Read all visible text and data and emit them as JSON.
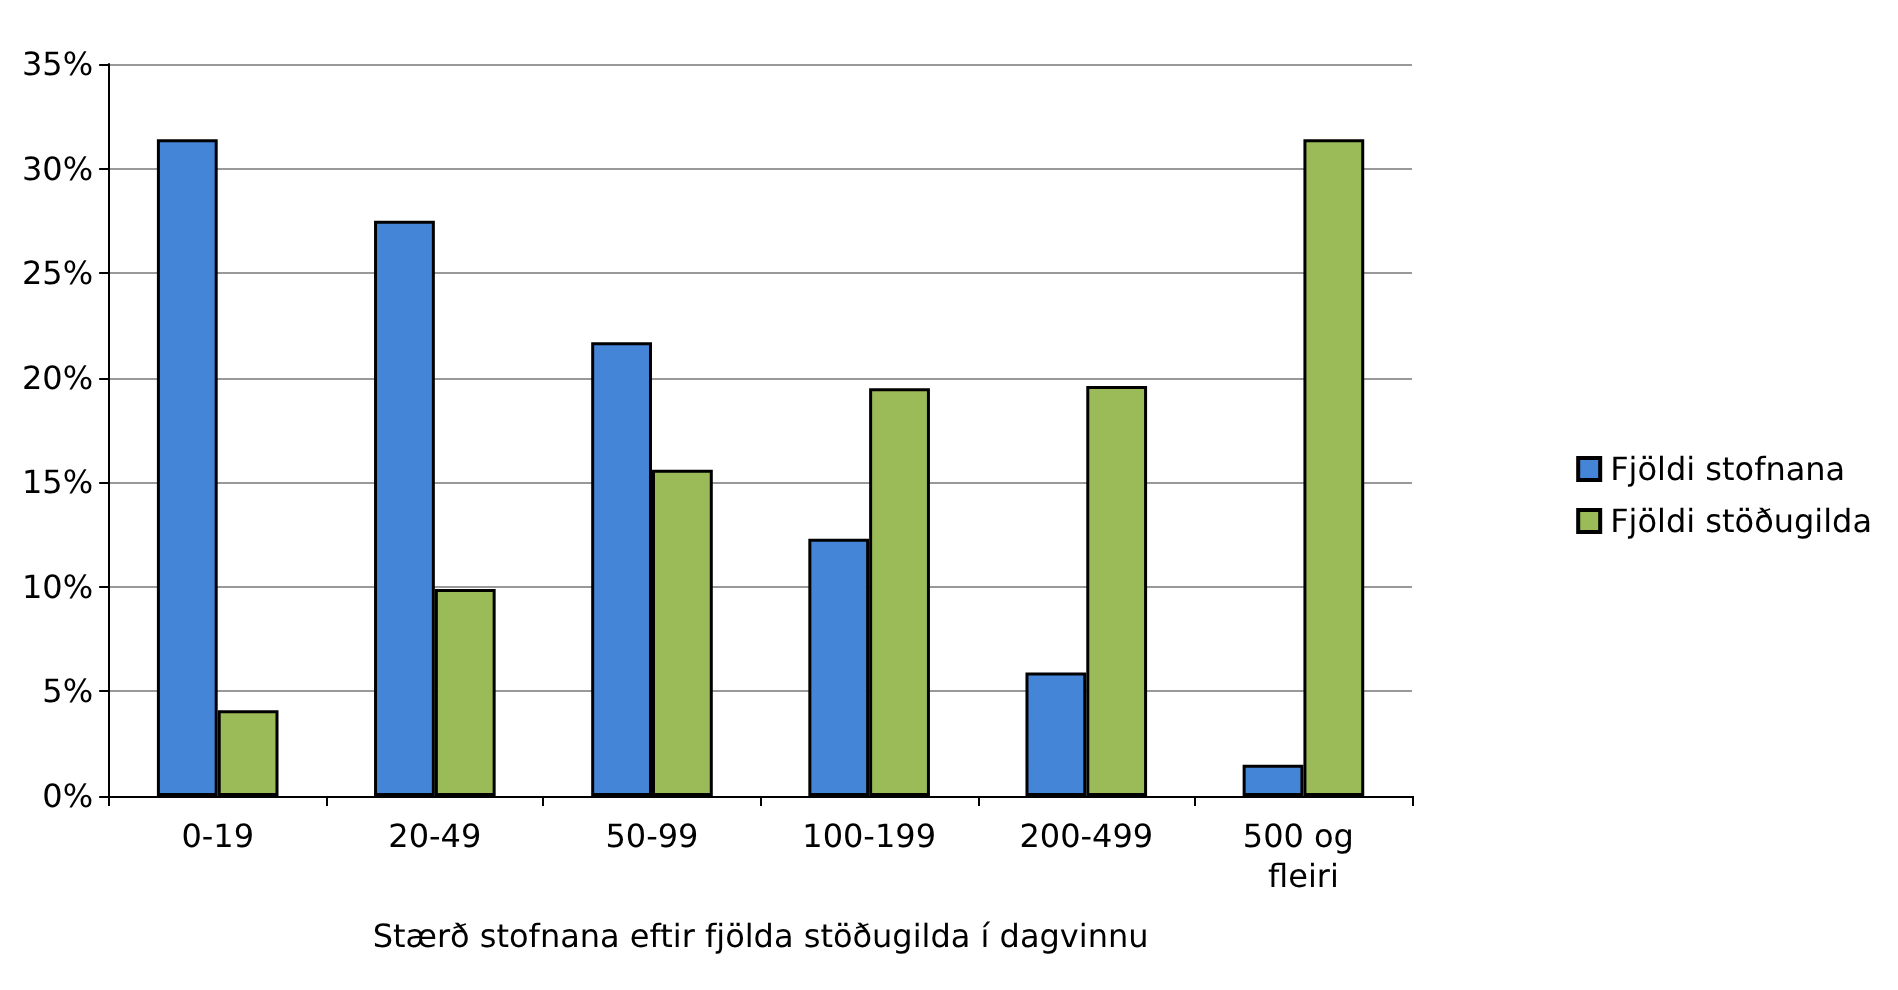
{
  "chart_data": {
    "type": "bar",
    "xlabel": "Stærð stofnana eftir fjölda stöðugilda í dagvinnu",
    "categories": [
      "0-19",
      "20-49",
      "50-99",
      "100-199",
      "200-499",
      "500 og fleiri"
    ],
    "series": [
      {
        "name": "Fjöldi stofnana",
        "color": "#4585d8",
        "values": [
          31.4,
          27.5,
          21.7,
          12.3,
          5.9,
          1.5
        ]
      },
      {
        "name": "Fjöldi stöðugilda",
        "color": "#9bbb59",
        "values": [
          4.1,
          9.9,
          15.6,
          19.5,
          19.6,
          31.4
        ]
      }
    ],
    "ylim": [
      0,
      35
    ],
    "yticks": [
      {
        "value": 0,
        "label": "0%"
      },
      {
        "value": 5,
        "label": "5%"
      },
      {
        "value": 10,
        "label": "10%"
      },
      {
        "value": 15,
        "label": "15%"
      },
      {
        "value": 20,
        "label": "20%"
      },
      {
        "value": 25,
        "label": "25%"
      },
      {
        "value": 30,
        "label": "30%"
      },
      {
        "value": 35,
        "label": "35%"
      }
    ],
    "grid": "y",
    "legend": "right"
  }
}
